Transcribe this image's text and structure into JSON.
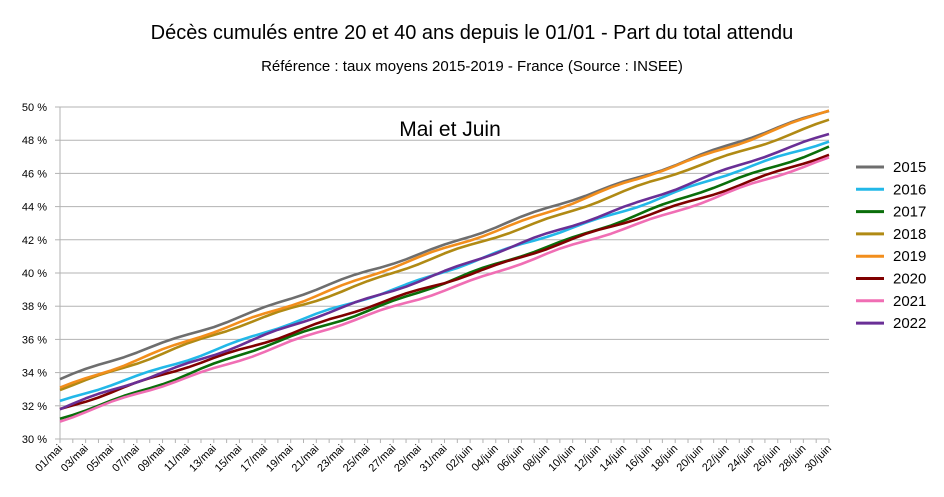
{
  "chart_data": {
    "type": "line",
    "title": "Décès cumulés entre 20 et 40 ans depuis le 01/01 - Part du total attendu",
    "subtitle": "Référence : taux moyens 2015-2019 - France  (Source : INSEE)",
    "annotation": "Mai et Juin",
    "xlabel": "",
    "ylabel": "",
    "ylim": [
      30,
      50
    ],
    "y_ticks": [
      "30 %",
      "32 %",
      "34 %",
      "36 %",
      "38 %",
      "40 %",
      "42 %",
      "44 %",
      "46 %",
      "48 %",
      "50 %"
    ],
    "x_tick_labels": [
      "01/mai",
      "03/mai",
      "05/mai",
      "07/mai",
      "09/mai",
      "11/mai",
      "13/mai",
      "15/mai",
      "17/mai",
      "19/mai",
      "21/mai",
      "23/mai",
      "25/mai",
      "27/mai",
      "29/mai",
      "31/mai",
      "02/juin",
      "04/juin",
      "06/juin",
      "08/juin",
      "10/juin",
      "12/juin",
      "14/juin",
      "16/juin",
      "18/juin",
      "20/juin",
      "22/juin",
      "24/juin",
      "26/juin",
      "28/juin",
      "30/juin"
    ],
    "grid": "horizontal",
    "legend_position": "right",
    "series": [
      {
        "name": "2015",
        "color": "#6e6e6e",
        "start": 33.6,
        "end": 49.8
      },
      {
        "name": "2016",
        "color": "#22b8e8",
        "start": 32.2,
        "end": 48.0
      },
      {
        "name": "2017",
        "color": "#0a6e0a",
        "start": 31.2,
        "end": 47.6
      },
      {
        "name": "2018",
        "color": "#b08a14",
        "start": 33.0,
        "end": 49.2
      },
      {
        "name": "2019",
        "color": "#f28e1c",
        "start": 33.1,
        "end": 49.8
      },
      {
        "name": "2020",
        "color": "#800000",
        "start": 31.8,
        "end": 47.1
      },
      {
        "name": "2021",
        "color": "#f06eb4",
        "start": 31.1,
        "end": 46.9
      },
      {
        "name": "2022",
        "color": "#6a2f96",
        "start": 31.8,
        "end": 48.4
      }
    ]
  }
}
